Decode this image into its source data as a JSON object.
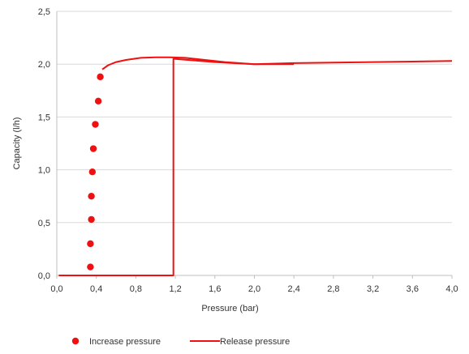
{
  "chart_data": {
    "type": "scatter",
    "xlabel": "Pressure   (bar)",
    "ylabel": "Capacity (l/h)",
    "xlim": [
      0,
      4.0
    ],
    "ylim": [
      0,
      2.5
    ],
    "xticks": [
      "0,0",
      "0,4",
      "0,8",
      "1,2",
      "1,6",
      "2,0",
      "2,4",
      "2,8",
      "3,2",
      "3,6",
      "4,0"
    ],
    "yticks": [
      "0,0",
      "0,5",
      "1,0",
      "1,5",
      "2,0",
      "2,5"
    ],
    "grid": "horizontal",
    "legend_position": "bottom",
    "series": [
      {
        "name": "Increase pressure",
        "kind": "scatter",
        "color": "#ee1111",
        "points": [
          [
            0.34,
            0.08
          ],
          [
            0.34,
            0.3
          ],
          [
            0.35,
            0.53
          ],
          [
            0.35,
            0.75
          ],
          [
            0.36,
            0.98
          ],
          [
            0.37,
            1.2
          ],
          [
            0.39,
            1.43
          ],
          [
            0.42,
            1.65
          ],
          [
            0.44,
            1.88
          ]
        ]
      },
      {
        "name": "Release pressure",
        "kind": "line",
        "color": "#ee1111",
        "points": [
          [
            4.0,
            2.03
          ],
          [
            3.2,
            2.02
          ],
          [
            2.4,
            2.01
          ],
          [
            2.0,
            2.0
          ],
          [
            1.6,
            2.02
          ],
          [
            1.2,
            2.05
          ],
          [
            1.18,
            2.05
          ],
          [
            1.18,
            0.0
          ],
          [
            0.8,
            0.0
          ],
          [
            0.4,
            0.0
          ],
          [
            0.02,
            0.0
          ]
        ]
      },
      {
        "name": "",
        "kind": "line",
        "color": "#ee1111",
        "points": [
          [
            0.46,
            1.95
          ],
          [
            0.52,
            1.99
          ],
          [
            0.6,
            2.02
          ],
          [
            0.7,
            2.04
          ],
          [
            0.85,
            2.06
          ],
          [
            1.0,
            2.065
          ],
          [
            1.15,
            2.065
          ],
          [
            1.3,
            2.06
          ],
          [
            1.5,
            2.04
          ],
          [
            1.7,
            2.02
          ],
          [
            2.0,
            2.0
          ],
          [
            2.4,
            2.0
          ]
        ]
      }
    ]
  }
}
